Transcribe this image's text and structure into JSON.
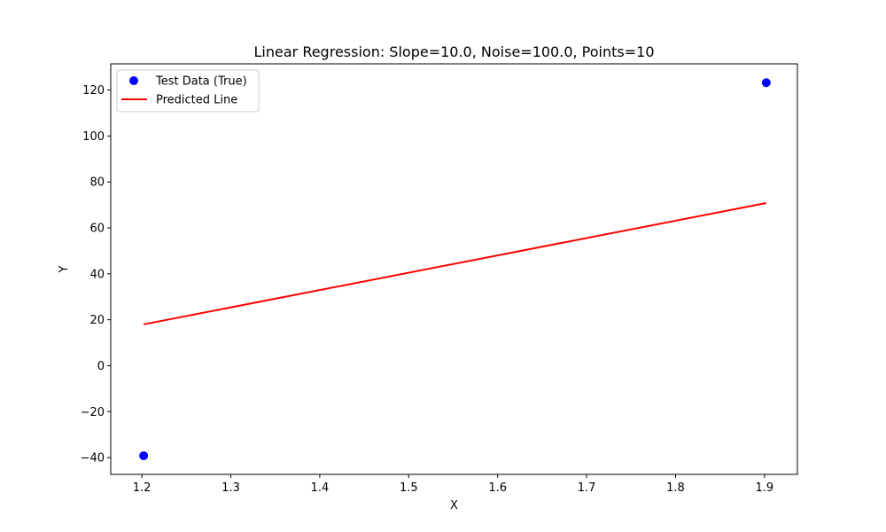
{
  "chart_data": {
    "type": "scatter",
    "title": "Linear Regression: Slope=10.0, Noise=100.0, Points=10",
    "xlabel": "X",
    "ylabel": "Y",
    "xlim": [
      1.165,
      1.937
    ],
    "ylim": [
      -47.3,
      131.4
    ],
    "xticks": [
      1.2,
      1.3,
      1.4,
      1.5,
      1.6,
      1.7,
      1.8,
      1.9
    ],
    "xtick_labels": [
      "1.2",
      "1.3",
      "1.4",
      "1.5",
      "1.6",
      "1.7",
      "1.8",
      "1.9"
    ],
    "yticks": [
      -40,
      -20,
      0,
      20,
      40,
      60,
      80,
      100,
      120
    ],
    "ytick_labels": [
      "−40",
      "−20",
      "0",
      "20",
      "40",
      "60",
      "80",
      "100",
      "120"
    ],
    "grid": false,
    "legend_position": "top-left",
    "series": [
      {
        "name": "Test Data (True)",
        "kind": "scatter",
        "color": "#0000ff",
        "points": [
          {
            "x": 1.202,
            "y": -39.2
          },
          {
            "x": 1.902,
            "y": 123.2
          }
        ]
      },
      {
        "name": "Predicted Line",
        "kind": "line",
        "color": "#ff0000",
        "points": [
          {
            "x": 1.202,
            "y": 18.0
          },
          {
            "x": 1.902,
            "y": 70.8
          }
        ]
      }
    ]
  }
}
